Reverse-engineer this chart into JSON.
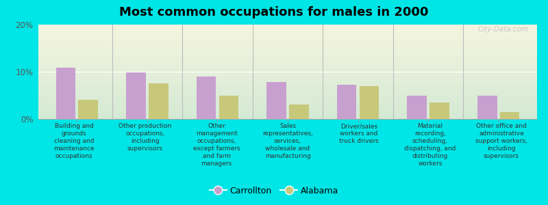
{
  "title": "Most common occupations for males in 2000",
  "categories": [
    "Building and\ngrounds\ncleaning and\nmaintenance\noccupations",
    "Other production\noccupations,\nincluding\nsupervisors",
    "Other\nmanagement\noccupations,\nexcept farmers\nand farm\nmanagers",
    "Sales\nrepresentatives,\nservices,\nwholesale and\nmanufacturing",
    "Driver/sales\nworkers and\ntruck drivers",
    "Material\nrecording,\nscheduling,\ndispatching, and\ndistributing\nworkers",
    "Other office and\nadministrative\nsupport workers,\nincluding\nsupervisors"
  ],
  "carrollton_values": [
    10.8,
    9.8,
    9.0,
    7.8,
    7.2,
    5.0,
    5.0
  ],
  "alabama_values": [
    4.0,
    7.5,
    5.0,
    3.0,
    7.0,
    3.5,
    1.5
  ],
  "carrollton_color": "#c8a0d0",
  "alabama_color": "#c8c87a",
  "background_outer": "#00e5e5",
  "background_plot_top": "#d4ead4",
  "background_plot_bottom": "#f5f5e0",
  "ylim": [
    0,
    20
  ],
  "yticks": [
    0,
    10,
    20
  ],
  "ytick_labels": [
    "0%",
    "10%",
    "20%"
  ],
  "legend_carrollton": "Carrollton",
  "legend_alabama": "Alabama",
  "watermark": "City-Data.com",
  "title_fontsize": 13,
  "label_fontsize": 6.5,
  "legend_fontsize": 9,
  "bar_width": 0.28,
  "bar_gap": 0.04
}
